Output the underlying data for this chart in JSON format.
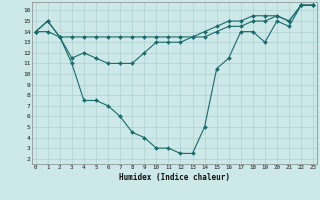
{
  "xlabel": "Humidex (Indice chaleur)",
  "x": [
    0,
    1,
    2,
    3,
    4,
    5,
    6,
    7,
    8,
    9,
    10,
    11,
    12,
    13,
    14,
    15,
    16,
    17,
    18,
    19,
    20,
    21,
    22,
    23
  ],
  "line1": [
    14,
    15,
    13.5,
    13.5,
    13.5,
    13.5,
    13.5,
    13.5,
    13.5,
    13.5,
    13.5,
    13.5,
    13.5,
    13.5,
    14,
    14.5,
    15,
    15,
    15.5,
    15.5,
    15.5,
    15,
    16.5,
    16.5
  ],
  "line2": [
    14,
    15,
    13.5,
    11,
    7.5,
    7.5,
    7,
    6,
    4.5,
    4,
    3,
    3,
    2.5,
    2.5,
    5,
    10.5,
    11.5,
    14,
    14,
    13,
    15,
    14.5,
    16.5,
    16.5
  ],
  "line3": [
    14,
    14,
    13.5,
    11.5,
    12,
    11.5,
    11,
    11,
    11,
    12,
    13,
    13,
    13,
    13.5,
    13.5,
    14,
    14.5,
    14.5,
    15,
    15,
    15.5,
    15,
    16.5,
    16.5
  ],
  "bg_color": "#cce8e8",
  "grid_color": "#b0d0d0",
  "line_color": "#1a6b6b",
  "yticks": [
    2,
    3,
    4,
    5,
    6,
    7,
    8,
    9,
    10,
    11,
    12,
    13,
    14,
    15,
    16
  ],
  "xticks": [
    0,
    1,
    2,
    3,
    4,
    5,
    6,
    7,
    8,
    9,
    10,
    11,
    12,
    13,
    14,
    15,
    16,
    17,
    18,
    19,
    20,
    21,
    22,
    23
  ]
}
